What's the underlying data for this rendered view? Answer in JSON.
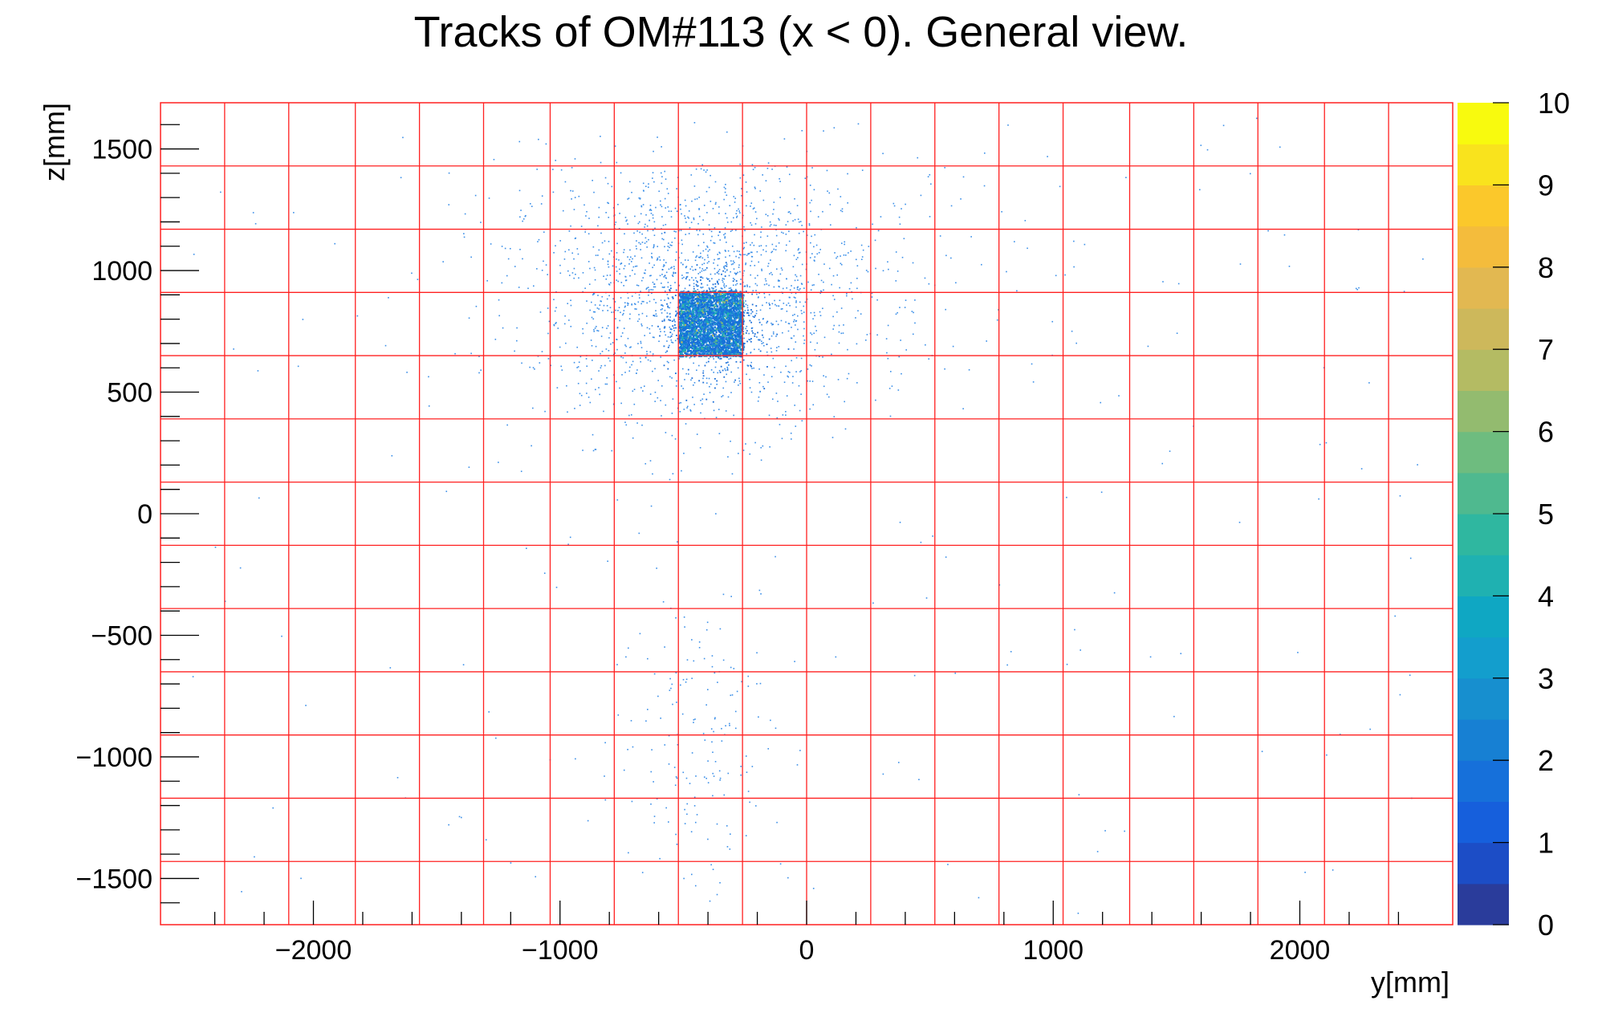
{
  "chart_data": {
    "type": "heatmap",
    "title": "Tracks of OM#113 (x < 0). General view.",
    "xlabel": "y[mm]",
    "ylabel": "z[mm]",
    "xlim": [
      -2620,
      2620
    ],
    "ylim": [
      -1690,
      1690
    ],
    "x_ticks": [
      -2000,
      -1000,
      0,
      1000,
      2000
    ],
    "y_ticks": [
      -1500,
      -1000,
      -500,
      0,
      500,
      1000,
      1500
    ],
    "x_tick_labels": [
      "−2000",
      "−1000",
      "0",
      "1000",
      "2000"
    ],
    "y_tick_labels": [
      "−1500",
      "−1000",
      "−500",
      "0",
      "500",
      "1000",
      "1500"
    ],
    "colorbar": {
      "range": [
        0,
        10
      ],
      "tick_values": [
        0,
        1,
        2,
        3,
        4,
        5,
        6,
        7,
        8,
        9,
        10
      ],
      "tick_labels": [
        "0",
        "1",
        "2",
        "3",
        "4",
        "5",
        "6",
        "7",
        "8",
        "9",
        "10"
      ],
      "colors": [
        "#2a3c9b",
        "#1c4dc6",
        "#165fdc",
        "#1670da",
        "#1780d3",
        "#178fcf",
        "#139ecd",
        "#0fa7c3",
        "#1fb1b1",
        "#2fb7a0",
        "#4fb98f",
        "#6ebc7f",
        "#93bb6f",
        "#b4bb63",
        "#cdb85b",
        "#e2b851",
        "#f4bc3c",
        "#fbc82b",
        "#f9e31d",
        "#f8fa0e"
      ]
    },
    "grid": {
      "color": "#ff2020",
      "y_lines": [
        -2360,
        -2100,
        -1830,
        -1570,
        -1310,
        -1040,
        -780,
        -520,
        -260,
        0,
        260,
        520,
        780,
        1040,
        1310,
        1570,
        1830,
        2100,
        2360
      ],
      "z_lines": [
        -1430,
        -1170,
        -910,
        -650,
        -390,
        -130,
        130,
        390,
        650,
        910,
        1170,
        1430
      ]
    },
    "series": [
      {
        "region": "dense block",
        "y_range": [
          -520,
          -260
        ],
        "z_range": [
          650,
          920
        ],
        "approx_density": "2-5"
      },
      {
        "region": "halo",
        "center": [
          -420,
          800
        ],
        "y_spread": [
          -1400,
          700
        ],
        "z_spread": [
          150,
          1450
        ],
        "approx_density": "1"
      },
      {
        "region": "lower tail",
        "center": [
          -430,
          -850
        ],
        "y_spread": [
          -800,
          0
        ],
        "z_spread": [
          -1650,
          -300
        ],
        "approx_density": "1"
      }
    ]
  }
}
